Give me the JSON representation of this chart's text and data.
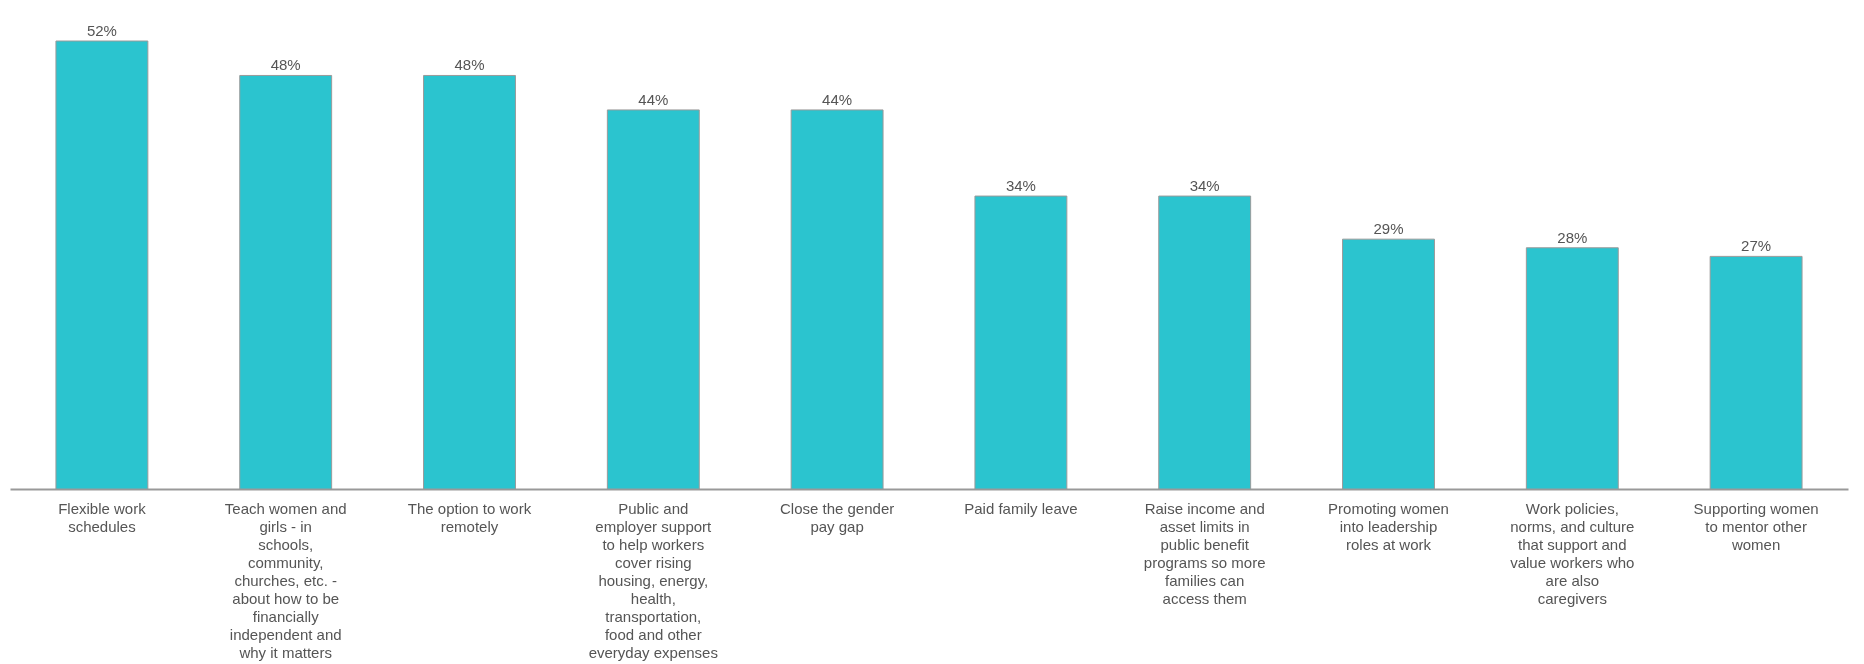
{
  "chart_data": {
    "type": "bar",
    "categories": [
      "Flexible work schedules",
      "Teach women and girls - in schools, community, churches, etc. - about how to be financially independent and why it matters",
      "The option to work remotely",
      "Public and employer support to help workers cover rising housing, energy, health, transportation, food and other everyday expenses",
      "Close the gender pay gap",
      "Paid family leave",
      "Raise income and asset limits in public benefit programs so more families can access them",
      "Promoting women into leadership roles at work",
      "Work policies, norms, and culture that support and value workers who are also caregivers",
      "Supporting women to mentor other women"
    ],
    "values": [
      52,
      48,
      48,
      44,
      44,
      34,
      34,
      29,
      28,
      27
    ],
    "value_labels": [
      "52%",
      "48%",
      "48%",
      "44%",
      "44%",
      "34%",
      "34%",
      "29%",
      "28%",
      "27%"
    ],
    "color": "#2bc4cf",
    "tick_labels": "x",
    "grid": false
  }
}
